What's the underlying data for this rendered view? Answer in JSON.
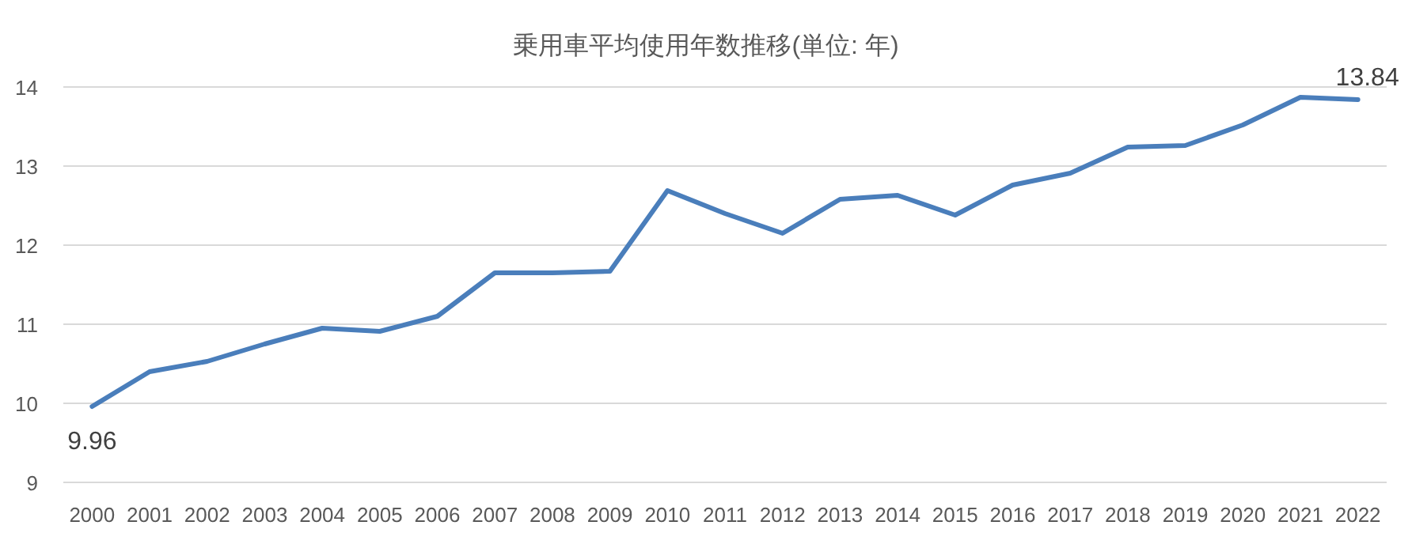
{
  "chart_data": {
    "type": "line",
    "title": "乗用車平均使用年数推移(単位: 年)",
    "categories": [
      "2000",
      "2001",
      "2002",
      "2003",
      "2004",
      "2005",
      "2006",
      "2007",
      "2008",
      "2009",
      "2010",
      "2011",
      "2012",
      "2013",
      "2014",
      "2015",
      "2016",
      "2017",
      "2018",
      "2019",
      "2020",
      "2021",
      "2022"
    ],
    "series": [
      {
        "color": "#4a7ebb",
        "values": [
          9.96,
          10.4,
          10.53,
          10.75,
          10.95,
          10.91,
          11.1,
          11.65,
          11.65,
          11.67,
          12.69,
          12.4,
          12.15,
          12.58,
          12.63,
          12.38,
          12.76,
          12.91,
          13.24,
          13.26,
          13.52,
          13.87,
          13.84
        ],
        "value_labels": [
          "9.96",
          null,
          null,
          null,
          null,
          null,
          null,
          null,
          null,
          null,
          null,
          null,
          null,
          null,
          null,
          null,
          null,
          null,
          null,
          null,
          null,
          null,
          "13.84"
        ]
      }
    ],
    "ylim": [
      9,
      14
    ],
    "yticks": [
      9,
      10,
      11,
      12,
      13,
      14
    ],
    "grid": "y",
    "marker": "none",
    "line_style": "solid"
  }
}
